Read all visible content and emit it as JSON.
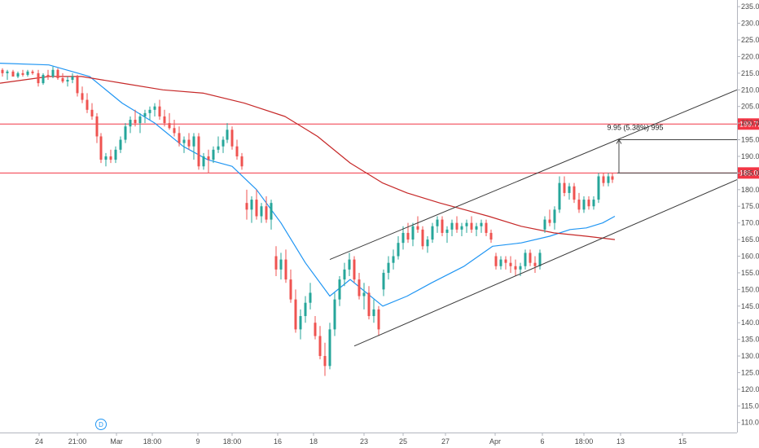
{
  "chart_data": {
    "type": "candlestick",
    "price_axis": {
      "ticks": [
        110,
        115,
        120,
        125,
        130,
        135,
        140,
        145,
        150,
        155,
        160,
        165,
        170,
        175,
        180,
        185,
        190,
        195,
        200,
        205,
        210,
        215,
        220,
        225,
        230,
        235
      ],
      "tick_labels": [
        "110.00",
        "115.00",
        "120.00",
        "125.00",
        "130.00",
        "135.00",
        "140.00",
        "145.00",
        "150.00",
        "155.00",
        "160.00",
        "165.00",
        "170.00",
        "175.00",
        "180.00",
        "185.00",
        "190.00",
        "195.00",
        "200.00",
        "205.00",
        "210.00",
        "215.00",
        "220.00",
        "225.00",
        "230.00",
        "235.00"
      ],
      "range": [
        107,
        237
      ]
    },
    "time_axis": {
      "range": [
        0,
        905
      ],
      "ticks": [
        {
          "label": "24",
          "t": 48
        },
        {
          "label": "21:00",
          "t": 95
        },
        {
          "label": "Mar",
          "t": 143
        },
        {
          "label": "18:00",
          "t": 187
        },
        {
          "label": "9",
          "t": 243
        },
        {
          "label": "18:00",
          "t": 285
        },
        {
          "label": "16",
          "t": 341
        },
        {
          "label": "18",
          "t": 385
        },
        {
          "label": "23",
          "t": 447
        },
        {
          "label": "25",
          "t": 495
        },
        {
          "label": "27",
          "t": 547
        },
        {
          "label": "Apr",
          "t": 608
        },
        {
          "label": "6",
          "t": 666
        },
        {
          "label": "18:00",
          "t": 717
        },
        {
          "label": "13",
          "t": 762
        },
        {
          "label": "15",
          "t": 838
        }
      ]
    },
    "horizontal_levels": [
      {
        "value": 199.72,
        "label": "199.72",
        "color": "#f23645"
      },
      {
        "value": 185.01,
        "label": "185.01",
        "color": "#f23645"
      }
    ],
    "channel_lines": [
      {
        "from": {
          "t": 405,
          "v": 159
        },
        "to": {
          "t": 905,
          "v": 210
        }
      },
      {
        "from": {
          "t": 435,
          "v": 133
        },
        "to": {
          "t": 905,
          "v": 183
        }
      }
    ],
    "measure": {
      "label": "9.95 (5.38%) 995",
      "t": 760,
      "from": 185.01,
      "to": 195
    },
    "moving_averages": [
      {
        "color": "#2196f3",
        "points": [
          [
            0,
            218
          ],
          [
            60,
            217.5
          ],
          [
            110,
            214
          ],
          [
            150,
            206
          ],
          [
            190,
            200
          ],
          [
            225,
            193
          ],
          [
            255,
            189
          ],
          [
            285,
            187
          ],
          [
            315,
            180
          ],
          [
            345,
            170
          ],
          [
            375,
            158
          ],
          [
            405,
            148
          ],
          [
            430,
            153
          ],
          [
            470,
            145
          ],
          [
            500,
            148
          ],
          [
            530,
            152
          ],
          [
            570,
            157
          ],
          [
            605,
            163
          ],
          [
            640,
            164
          ],
          [
            675,
            166
          ],
          [
            700,
            168
          ],
          [
            720,
            168.5
          ],
          [
            740,
            170
          ],
          [
            755,
            172
          ]
        ]
      },
      {
        "color": "#c62828",
        "points": [
          [
            0,
            212
          ],
          [
            60,
            214
          ],
          [
            100,
            214
          ],
          [
            150,
            212
          ],
          [
            200,
            210
          ],
          [
            250,
            209
          ],
          [
            300,
            206
          ],
          [
            350,
            202
          ],
          [
            390,
            196
          ],
          [
            430,
            188
          ],
          [
            470,
            182
          ],
          [
            500,
            179
          ],
          [
            540,
            176
          ],
          [
            570,
            174
          ],
          [
            600,
            172
          ],
          [
            640,
            169
          ],
          [
            680,
            167
          ],
          [
            720,
            166
          ],
          [
            755,
            165
          ]
        ]
      }
    ],
    "events": [
      {
        "label": "D",
        "t": 124
      }
    ],
    "candles": [
      [
        3,
        216,
        216.5,
        214,
        215
      ],
      [
        9,
        215,
        216,
        213,
        215.5
      ],
      [
        16,
        215.5,
        216,
        214,
        214
      ],
      [
        22,
        214,
        215.5,
        213.5,
        215
      ],
      [
        28,
        215,
        216,
        214,
        214.5
      ],
      [
        34,
        214.5,
        216,
        214,
        215.5
      ],
      [
        40,
        215.5,
        216,
        214.5,
        215
      ],
      [
        47,
        215,
        216,
        211,
        212
      ],
      [
        53,
        212,
        215,
        211.5,
        214.5
      ],
      [
        59,
        214.5,
        216,
        213,
        214
      ],
      [
        65,
        214,
        217,
        213.5,
        216
      ],
      [
        71,
        216,
        216.5,
        213,
        213.5
      ],
      [
        77,
        213.5,
        215,
        212,
        212.5
      ],
      [
        83,
        212.5,
        214,
        211,
        213
      ],
      [
        89,
        213,
        215,
        212,
        214
      ],
      [
        95,
        214,
        214.5,
        208,
        209
      ],
      [
        101,
        209,
        211,
        206,
        207
      ],
      [
        107,
        207,
        209,
        203,
        204
      ],
      [
        113,
        204,
        206,
        201,
        202
      ],
      [
        119,
        202,
        203,
        194,
        196
      ],
      [
        124,
        196,
        197,
        188,
        189
      ],
      [
        130,
        189,
        191,
        187,
        190
      ],
      [
        136,
        190,
        192,
        188,
        189
      ],
      [
        142,
        189,
        193,
        188,
        192
      ],
      [
        148,
        192,
        196,
        191,
        195
      ],
      [
        154,
        195,
        200,
        194,
        199
      ],
      [
        160,
        199,
        202,
        197,
        201
      ],
      [
        166,
        201,
        204,
        199,
        200
      ],
      [
        172,
        200,
        203,
        197,
        202
      ],
      [
        178,
        202,
        204,
        200,
        203
      ],
      [
        184,
        203,
        205,
        201,
        204
      ],
      [
        190,
        204,
        206,
        202,
        205
      ],
      [
        196,
        205,
        207,
        201,
        202
      ],
      [
        202,
        202,
        204,
        199,
        200
      ],
      [
        208,
        200,
        203,
        198,
        198.5
      ],
      [
        214,
        198.5,
        201,
        196,
        197
      ],
      [
        220,
        197,
        199,
        193,
        194
      ],
      [
        226,
        194,
        196,
        191,
        195
      ],
      [
        232,
        195,
        197,
        192,
        193
      ],
      [
        238,
        193,
        197,
        189,
        196
      ],
      [
        244,
        196,
        197,
        186,
        187
      ],
      [
        250,
        187,
        191,
        186,
        190
      ],
      [
        256,
        190,
        192,
        185,
        189
      ],
      [
        262,
        189,
        193,
        188,
        192
      ],
      [
        268,
        192,
        196,
        191,
        193
      ],
      [
        274,
        193,
        196,
        191,
        195
      ],
      [
        279,
        195,
        200,
        194,
        198
      ],
      [
        285,
        198,
        199,
        192,
        193
      ],
      [
        291,
        193,
        195,
        189,
        190
      ],
      [
        297,
        190,
        191,
        186,
        187
      ],
      [
        303,
        176,
        180,
        171,
        174
      ],
      [
        309,
        174,
        178,
        170,
        177
      ],
      [
        315,
        177,
        180,
        171,
        172
      ],
      [
        321,
        172,
        176,
        170,
        175
      ],
      [
        327,
        175,
        178,
        170,
        171
      ],
      [
        333,
        171,
        177,
        168,
        176
      ],
      [
        339,
        160,
        163,
        154,
        156
      ],
      [
        345,
        156,
        161,
        153,
        159
      ],
      [
        351,
        159,
        162,
        152,
        153
      ],
      [
        357,
        153,
        156,
        146,
        147
      ],
      [
        363,
        147,
        150,
        137,
        138
      ],
      [
        369,
        138,
        144,
        135,
        142
      ],
      [
        375,
        142,
        148,
        140,
        146
      ],
      [
        381,
        146,
        152,
        144,
        149
      ],
      [
        387,
        140,
        142,
        135,
        136
      ],
      [
        393,
        136,
        139,
        129,
        130
      ],
      [
        399,
        130,
        134,
        124,
        127
      ],
      [
        405,
        127,
        140,
        126,
        138
      ],
      [
        411,
        138,
        149,
        136,
        147
      ],
      [
        417,
        147,
        154,
        145,
        153
      ],
      [
        423,
        153,
        158,
        151,
        156
      ],
      [
        429,
        156,
        161,
        154,
        159
      ],
      [
        435,
        159,
        160,
        152,
        153
      ],
      [
        441,
        153,
        155,
        147,
        148
      ],
      [
        447,
        148,
        152,
        144,
        149
      ],
      [
        453,
        149,
        151,
        141,
        142
      ],
      [
        459,
        142,
        147,
        140,
        144
      ],
      [
        465,
        144,
        145,
        136,
        138
      ],
      [
        471,
        150,
        156,
        148,
        155
      ],
      [
        477,
        155,
        160,
        153,
        158
      ],
      [
        483,
        158,
        162,
        156,
        160
      ],
      [
        489,
        160,
        166,
        159,
        164
      ],
      [
        495,
        164,
        169,
        162,
        167
      ],
      [
        501,
        167,
        170,
        164,
        165
      ],
      [
        507,
        165,
        170,
        163,
        169
      ],
      [
        513,
        169,
        172,
        167,
        168
      ],
      [
        519,
        168,
        169,
        162,
        163
      ],
      [
        525,
        163,
        166,
        161,
        165
      ],
      [
        531,
        165,
        170,
        164,
        169
      ],
      [
        537,
        169,
        172,
        167,
        171
      ],
      [
        543,
        171,
        172,
        166,
        167
      ],
      [
        549,
        167,
        169,
        164,
        168
      ],
      [
        555,
        168,
        171,
        166,
        170
      ],
      [
        561,
        170,
        172,
        167,
        168
      ],
      [
        567,
        168,
        170,
        166,
        169
      ],
      [
        573,
        169,
        171,
        167,
        170
      ],
      [
        579,
        170,
        172,
        167,
        168
      ],
      [
        585,
        168,
        170,
        166,
        169
      ],
      [
        591,
        169,
        171,
        167,
        170
      ],
      [
        597,
        170,
        171,
        166,
        167
      ],
      [
        603,
        167,
        168,
        164,
        165
      ],
      [
        609,
        160,
        161,
        156,
        157
      ],
      [
        615,
        157,
        160,
        156,
        159
      ],
      [
        621,
        159,
        160,
        156,
        158
      ],
      [
        627,
        158,
        160,
        155,
        157
      ],
      [
        633,
        157,
        159,
        154,
        156
      ],
      [
        639,
        156,
        158,
        154,
        157
      ],
      [
        645,
        157,
        162,
        156,
        161
      ],
      [
        651,
        161,
        162,
        157,
        158
      ],
      [
        657,
        158,
        160,
        155,
        157
      ],
      [
        663,
        157,
        162,
        156,
        161
      ],
      [
        669,
        168,
        172,
        167,
        171
      ],
      [
        675,
        171,
        174,
        169,
        170
      ],
      [
        681,
        170,
        175,
        168,
        174
      ],
      [
        687,
        174,
        184,
        173,
        182
      ],
      [
        693,
        182,
        184,
        178,
        179
      ],
      [
        699,
        179,
        182,
        177,
        181
      ],
      [
        705,
        181,
        182,
        176,
        177
      ],
      [
        711,
        177,
        179,
        173,
        174
      ],
      [
        717,
        174,
        178,
        173,
        177
      ],
      [
        723,
        177,
        178,
        174,
        175
      ],
      [
        729,
        175,
        178,
        174,
        177
      ],
      [
        735,
        177,
        185,
        176,
        184
      ],
      [
        741,
        184,
        185,
        181,
        182
      ],
      [
        747,
        182,
        185,
        181,
        184
      ],
      [
        752,
        184,
        185,
        182,
        183
      ]
    ]
  }
}
